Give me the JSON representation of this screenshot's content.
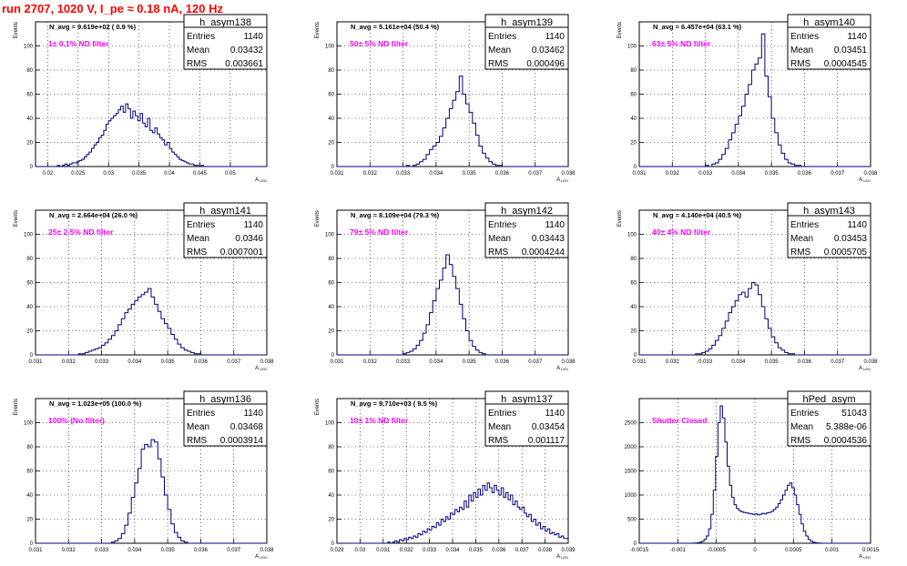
{
  "page": {
    "title": "run 2707,  1020 V, I_pe ≈ 0.18 nA, 120 Hz"
  },
  "colors": {
    "histogram": "#000080",
    "annotation": "#ff00ff",
    "title": "#ff0000"
  },
  "chart_data": [
    {
      "type": "histogram",
      "name": "h_asym138",
      "stats": {
        "entries": "1140",
        "mean": "0.03432",
        "rms": "0.003661"
      },
      "navg": "N_avg = 9.619e+02 ( 0.9 %)",
      "annotation": "1± 0.1% ND filter",
      "xlim": [
        0.018,
        0.056
      ],
      "ylim": [
        0,
        120
      ],
      "grid": true,
      "xticks": [
        0.02,
        0.025,
        0.03,
        0.035,
        0.04,
        0.045,
        0.05
      ],
      "xticklabels": [
        "0.02",
        "0.025",
        "0.03",
        "0.035",
        "0.04",
        "0.045",
        "0.05"
      ],
      "yticks": [
        0,
        20,
        40,
        60,
        80,
        100,
        120
      ],
      "yticklabels": [
        "0",
        "20",
        "40",
        "60",
        "80",
        "100",
        ""
      ],
      "ylabel": "Events",
      "xlabel": "A_LED",
      "x_start": 0.018,
      "bin_width": 0.0004,
      "counts": [
        0,
        0,
        0,
        0,
        0,
        0,
        0,
        0,
        0,
        1,
        0,
        1,
        2,
        1,
        2,
        3,
        3,
        4,
        5,
        6,
        8,
        10,
        12,
        15,
        18,
        20,
        24,
        26,
        30,
        35,
        38,
        40,
        42,
        44,
        47,
        50,
        45,
        52,
        48,
        40,
        46,
        42,
        38,
        44,
        36,
        33,
        40,
        30,
        28,
        32,
        27,
        24,
        22,
        18,
        20,
        15,
        12,
        10,
        8,
        6,
        5,
        4,
        3,
        2,
        2,
        1,
        1,
        0,
        1,
        0,
        0,
        0,
        0,
        0,
        0,
        0,
        0,
        0,
        0,
        0,
        0,
        0,
        0,
        0,
        0,
        0,
        0,
        0,
        0,
        0,
        0,
        0,
        0,
        0,
        0
      ]
    },
    {
      "type": "histogram",
      "name": "h_asym139",
      "stats": {
        "entries": "1140",
        "mean": "0.03462",
        "rms": "0.000496"
      },
      "navg": "N_avg = 5.161e+04 (50.4 %)",
      "annotation": "50± 5% ND filter",
      "xlim": [
        0.031,
        0.038
      ],
      "ylim": [
        0,
        120
      ],
      "grid": true,
      "xticks": [
        0.031,
        0.032,
        0.033,
        0.034,
        0.035,
        0.036,
        0.037,
        0.038
      ],
      "xticklabels": [
        "0.031",
        "0.032",
        "0.033",
        "0.034",
        "0.035",
        "0.036",
        "0.037",
        "0.038"
      ],
      "yticks": [
        0,
        20,
        40,
        60,
        80,
        100,
        120
      ],
      "yticklabels": [
        "0",
        "20",
        "40",
        "60",
        "80",
        "100",
        ""
      ],
      "ylabel": "Events",
      "xlabel": "A_LED",
      "x_start": 0.031,
      "bin_width": 0.0001,
      "counts": [
        0,
        0,
        0,
        0,
        0,
        0,
        0,
        0,
        0,
        0,
        0,
        0,
        0,
        0,
        0,
        0,
        0,
        0,
        0,
        0,
        0,
        1,
        0,
        1,
        2,
        4,
        6,
        10,
        14,
        17,
        20,
        25,
        32,
        40,
        48,
        55,
        62,
        75,
        60,
        52,
        45,
        36,
        26,
        17,
        11,
        7,
        4,
        2,
        1,
        1,
        0,
        0,
        0,
        0,
        0,
        0,
        0,
        0,
        0,
        0,
        0,
        0,
        0,
        0,
        0,
        0,
        0,
        0,
        0,
        0
      ]
    },
    {
      "type": "histogram",
      "name": "h_asym140",
      "stats": {
        "entries": "1140",
        "mean": "0.03451",
        "rms": "0.0004545"
      },
      "navg": "N_avg = 6.457e+04 (63.1 %)",
      "annotation": "63± 5% ND filter",
      "xlim": [
        0.031,
        0.038
      ],
      "ylim": [
        0,
        120
      ],
      "grid": true,
      "xticks": [
        0.031,
        0.032,
        0.033,
        0.034,
        0.035,
        0.036,
        0.037,
        0.038
      ],
      "xticklabels": [
        "0.031",
        "0.032",
        "0.033",
        "0.034",
        "0.035",
        "0.036",
        "0.037",
        "0.038"
      ],
      "yticks": [
        0,
        20,
        40,
        60,
        80,
        100,
        120
      ],
      "yticklabels": [
        "0",
        "20",
        "40",
        "60",
        "80",
        "100",
        ""
      ],
      "ylabel": "Events",
      "xlabel": "A_LED",
      "x_start": 0.031,
      "bin_width": 0.0001,
      "counts": [
        0,
        0,
        0,
        0,
        0,
        0,
        0,
        0,
        0,
        0,
        0,
        0,
        0,
        0,
        0,
        0,
        0,
        0,
        0,
        0,
        1,
        0,
        2,
        3,
        6,
        10,
        15,
        22,
        28,
        35,
        42,
        50,
        60,
        68,
        80,
        85,
        90,
        110,
        75,
        58,
        40,
        28,
        18,
        11,
        6,
        3,
        2,
        1,
        1,
        0,
        0,
        0,
        0,
        0,
        0,
        0,
        0,
        0,
        0,
        0,
        0,
        0,
        0,
        0,
        0,
        0,
        0,
        0,
        0,
        0
      ]
    },
    {
      "type": "histogram",
      "name": "h_asym141",
      "stats": {
        "entries": "1140",
        "mean": "0.0346",
        "rms": "0.0007001"
      },
      "navg": "N_avg = 2.664e+04 (26.0 %)",
      "annotation": "25± 2.5% ND filter",
      "xlim": [
        0.031,
        0.038
      ],
      "ylim": [
        0,
        120
      ],
      "grid": true,
      "xticks": [
        0.031,
        0.032,
        0.033,
        0.034,
        0.035,
        0.036,
        0.037,
        0.038
      ],
      "xticklabels": [
        "0.031",
        "0.032",
        "0.033",
        "0.034",
        "0.035",
        "0.036",
        "0.037",
        "0.038"
      ],
      "yticks": [
        0,
        20,
        40,
        60,
        80,
        100,
        120
      ],
      "yticklabels": [
        "0",
        "20",
        "40",
        "60",
        "80",
        "100",
        ""
      ],
      "ylabel": "Events",
      "xlabel": "A_LED",
      "x_start": 0.031,
      "bin_width": 0.0001,
      "counts": [
        0,
        0,
        0,
        0,
        0,
        0,
        0,
        0,
        0,
        0,
        0,
        0,
        0,
        1,
        1,
        2,
        3,
        4,
        5,
        6,
        8,
        10,
        13,
        16,
        20,
        25,
        30,
        35,
        38,
        42,
        45,
        48,
        50,
        52,
        55,
        48,
        42,
        36,
        30,
        26,
        22,
        17,
        13,
        9,
        6,
        4,
        3,
        2,
        1,
        1,
        0,
        0,
        0,
        0,
        0,
        0,
        0,
        0,
        0,
        0,
        0,
        0,
        0,
        0,
        0,
        0,
        0,
        0,
        0,
        0
      ]
    },
    {
      "type": "histogram",
      "name": "h_asym142",
      "stats": {
        "entries": "1140",
        "mean": "0.03443",
        "rms": "0.0004244"
      },
      "navg": "N_avg = 8.109e+04 (79.3 %)",
      "annotation": "79± 5% ND filter",
      "xlim": [
        0.031,
        0.038
      ],
      "ylim": [
        0,
        120
      ],
      "grid": true,
      "xticks": [
        0.031,
        0.032,
        0.033,
        0.034,
        0.035,
        0.036,
        0.037,
        0.038
      ],
      "xticklabels": [
        "0.031",
        "0.032",
        "0.033",
        "0.034",
        "0.035",
        "0.036",
        "0.037",
        "0.038"
      ],
      "yticks": [
        0,
        20,
        40,
        60,
        80,
        100,
        120
      ],
      "yticklabels": [
        "0",
        "20",
        "40",
        "60",
        "80",
        "100",
        ""
      ],
      "ylabel": "Events",
      "xlabel": "A_LED",
      "x_start": 0.031,
      "bin_width": 0.0001,
      "counts": [
        0,
        0,
        0,
        0,
        0,
        0,
        0,
        0,
        0,
        0,
        0,
        0,
        0,
        0,
        0,
        0,
        0,
        0,
        0,
        0,
        1,
        2,
        3,
        5,
        8,
        12,
        18,
        25,
        35,
        45,
        55,
        62,
        72,
        83,
        75,
        65,
        55,
        42,
        30,
        20,
        12,
        7,
        4,
        2,
        1,
        0,
        0,
        0,
        0,
        0,
        0,
        0,
        0,
        0,
        0,
        0,
        0,
        0,
        0,
        0,
        0,
        0,
        0,
        0,
        0,
        0,
        0,
        0,
        0,
        0
      ]
    },
    {
      "type": "histogram",
      "name": "h_asym143",
      "stats": {
        "entries": "1140",
        "mean": "0.03453",
        "rms": "0.0005705"
      },
      "navg": "N_avg = 4.140e+04 (40.5 %)",
      "annotation": "40± 4% ND filter",
      "xlim": [
        0.031,
        0.038
      ],
      "ylim": [
        0,
        120
      ],
      "grid": true,
      "xticks": [
        0.031,
        0.032,
        0.033,
        0.034,
        0.035,
        0.036,
        0.037,
        0.038
      ],
      "xticklabels": [
        "0.031",
        "0.032",
        "0.033",
        "0.034",
        "0.035",
        "0.036",
        "0.037",
        "0.038"
      ],
      "yticks": [
        0,
        20,
        40,
        60,
        80,
        100,
        120
      ],
      "yticklabels": [
        "0",
        "20",
        "40",
        "60",
        "80",
        "100",
        ""
      ],
      "ylabel": "Events",
      "xlabel": "A_LED",
      "x_start": 0.031,
      "bin_width": 0.0001,
      "counts": [
        0,
        0,
        0,
        0,
        0,
        0,
        0,
        0,
        0,
        0,
        0,
        0,
        0,
        0,
        0,
        0,
        0,
        1,
        1,
        2,
        3,
        5,
        8,
        12,
        16,
        22,
        28,
        35,
        40,
        45,
        50,
        52,
        48,
        55,
        60,
        58,
        50,
        40,
        30,
        22,
        15,
        10,
        6,
        4,
        2,
        1,
        1,
        0,
        0,
        0,
        0,
        0,
        0,
        0,
        0,
        0,
        0,
        0,
        0,
        0,
        0,
        0,
        0,
        0,
        0,
        0,
        0,
        0,
        0,
        0
      ]
    },
    {
      "type": "histogram",
      "name": "h_asym136",
      "stats": {
        "entries": "1140",
        "mean": "0.03468",
        "rms": "0.0003914"
      },
      "navg": "N_avg = 1.023e+05 (100.0 %)",
      "annotation": "100% (No filter)",
      "xlim": [
        0.031,
        0.038
      ],
      "ylim": [
        0,
        120
      ],
      "grid": true,
      "xticks": [
        0.031,
        0.032,
        0.033,
        0.034,
        0.035,
        0.036,
        0.037,
        0.038
      ],
      "xticklabels": [
        "0.031",
        "0.032",
        "0.033",
        "0.034",
        "0.035",
        "0.036",
        "0.037",
        "0.038"
      ],
      "yticks": [
        0,
        20,
        40,
        60,
        80,
        100,
        120
      ],
      "yticklabels": [
        "0",
        "20",
        "40",
        "60",
        "80",
        "100",
        ""
      ],
      "ylabel": "Events",
      "xlabel": "A_LED",
      "x_start": 0.031,
      "bin_width": 0.0001,
      "counts": [
        0,
        0,
        0,
        0,
        0,
        0,
        0,
        0,
        0,
        0,
        0,
        0,
        0,
        0,
        0,
        0,
        0,
        0,
        0,
        0,
        0,
        0,
        0,
        1,
        2,
        4,
        8,
        15,
        25,
        38,
        50,
        62,
        78,
        82,
        80,
        86,
        84,
        70,
        55,
        40,
        28,
        16,
        9,
        5,
        2,
        1,
        0,
        0,
        0,
        0,
        0,
        0,
        0,
        0,
        0,
        0,
        0,
        0,
        0,
        0,
        0,
        0,
        0,
        0,
        0,
        0,
        0,
        0,
        0,
        0
      ]
    },
    {
      "type": "histogram",
      "name": "h_asym137",
      "stats": {
        "entries": "1140",
        "mean": "0.03454",
        "rms": "0.001117"
      },
      "navg": "N_avg = 9.710e+03 ( 9.5 %)",
      "annotation": "10± 1% ND filter",
      "xlim": [
        0.029,
        0.039
      ],
      "ylim": [
        0,
        120
      ],
      "grid": true,
      "xticks": [
        0.029,
        0.03,
        0.031,
        0.032,
        0.033,
        0.034,
        0.035,
        0.036,
        0.037,
        0.038,
        0.039
      ],
      "xticklabels": [
        "0.029",
        "0.03",
        "0.031",
        "0.032",
        "0.033",
        "0.034",
        "0.035",
        "0.036",
        "0.037",
        "0.038",
        "0.039"
      ],
      "yticks": [
        0,
        20,
        40,
        60,
        80,
        100,
        120
      ],
      "yticklabels": [
        "0",
        "20",
        "40",
        "60",
        "80",
        "100",
        ""
      ],
      "ylabel": "Events",
      "xlabel": "A_LED",
      "x_start": 0.029,
      "bin_width": 0.0001,
      "counts": [
        0,
        0,
        0,
        0,
        0,
        0,
        0,
        0,
        0,
        0,
        0,
        0,
        0,
        0,
        0,
        0,
        0,
        0,
        0,
        0,
        0,
        0,
        1,
        0,
        1,
        2,
        1,
        3,
        2,
        4,
        3,
        5,
        4,
        6,
        5,
        8,
        7,
        10,
        9,
        12,
        11,
        14,
        13,
        17,
        15,
        20,
        18,
        22,
        20,
        25,
        24,
        28,
        26,
        30,
        28,
        35,
        30,
        40,
        35,
        42,
        38,
        45,
        40,
        48,
        44,
        50,
        46,
        42,
        48,
        44,
        40,
        46,
        38,
        42,
        36,
        40,
        32,
        35,
        30,
        28,
        30,
        25,
        22,
        24,
        18,
        20,
        15,
        17,
        12,
        14,
        10,
        12,
        8,
        9,
        7,
        8,
        5,
        6,
        4,
        4,
        3,
        3,
        2,
        2,
        1,
        1,
        1,
        0,
        1,
        0,
        0,
        0,
        0
      ]
    },
    {
      "type": "histogram",
      "name": "hPed_asym",
      "stats": {
        "entries": "51043",
        "mean": "5.388e-06",
        "rms": "0.0004536"
      },
      "navg": "",
      "annotation": "Shutter Closed",
      "xlim": [
        -0.0015,
        0.0015
      ],
      "ylim": [
        0,
        3000
      ],
      "grid": true,
      "xticks": [
        -0.0015,
        -0.001,
        -0.0005,
        0,
        0.0005,
        0.001,
        0.0015
      ],
      "xticklabels": [
        "-0.0015",
        "-0.001",
        "-0.0005",
        "0",
        "0.0005",
        "0.001",
        "0.0015"
      ],
      "yticks": [
        0,
        500,
        1000,
        1500,
        2000,
        2500,
        3000
      ],
      "yticklabels": [
        "0",
        "500",
        "1000",
        "1500",
        "2000",
        "2500",
        ""
      ],
      "ylabel": "",
      "xlabel": "A_LED",
      "x_start": -0.0015,
      "bin_width": 3e-05,
      "counts": [
        0,
        0,
        0,
        0,
        0,
        0,
        0,
        0,
        0,
        0,
        0,
        0,
        0,
        0,
        0,
        0,
        0,
        0,
        0,
        0,
        0,
        0,
        0,
        2,
        5,
        10,
        20,
        40,
        80,
        150,
        300,
        600,
        1100,
        1800,
        2500,
        2850,
        2600,
        2100,
        1600,
        1200,
        950,
        800,
        720,
        680,
        650,
        640,
        630,
        620,
        610,
        600,
        610,
        590,
        600,
        620,
        610,
        630,
        640,
        660,
        700,
        750,
        820,
        900,
        1000,
        1100,
        1200,
        1250,
        1150,
        1000,
        800,
        600,
        400,
        250,
        150,
        80,
        40,
        20,
        10,
        5,
        2,
        0,
        0,
        0,
        0,
        0,
        0,
        0,
        0,
        0,
        0,
        0,
        0,
        0,
        0,
        0,
        0,
        0,
        0,
        0,
        0,
        0
      ]
    }
  ]
}
